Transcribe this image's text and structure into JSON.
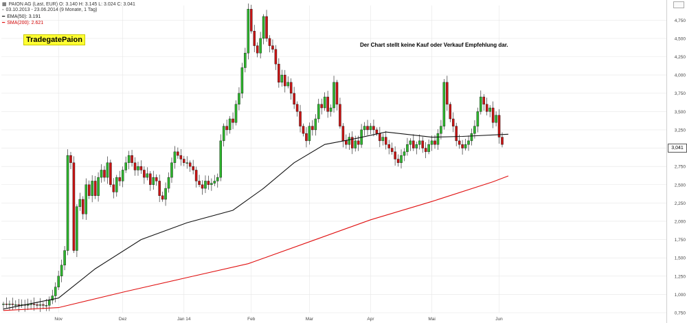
{
  "header": {
    "line1": "PAION AG (Last, EUR)  O: 3.140  H: 3.145  L: 3.024  C: 3.041",
    "line2": "03.10.2013 - 23.06.2014 (9 Monate, 1 Tag)",
    "ema_label": "EMA(50): 3.191",
    "sma_label": "SMA(200): 2.621",
    "tradegate_badge": "TradegatePaion",
    "disclaimer": "Der Chart stellt  keine Kauf  oder Verkauf Empfehlung dar."
  },
  "colors": {
    "up": "#2db52d",
    "down": "#c91414",
    "ema": "#111111",
    "sma": "#e01010",
    "grid": "#e6e6e6"
  },
  "chart_data": {
    "type": "candlestick",
    "title": "PAION AG (Last, EUR)",
    "ylim": [
      0.75,
      4.95
    ],
    "y_ticks": [
      0.75,
      1.0,
      1.25,
      1.5,
      1.75,
      2.0,
      2.25,
      2.5,
      2.75,
      3.0,
      3.25,
      3.5,
      3.75,
      4.0,
      4.25,
      4.5,
      4.75
    ],
    "y_tick_labels": [
      "0,750",
      "1,000",
      "1,250",
      "1,500",
      "1,750",
      "2,000",
      "2,250",
      "2,500",
      "2,750",
      "3,000",
      "3,250",
      "3,500",
      "3,750",
      "4,000",
      "4,250",
      "4,500",
      "4,750"
    ],
    "x_tick_labels": [
      "Nov",
      "Dez",
      "Jan 14",
      "Feb",
      "Mar",
      "Apr",
      "Mai",
      "Jun"
    ],
    "x_tick_index": [
      18,
      39,
      59,
      81,
      100,
      120,
      140,
      162
    ],
    "last_price_label": "3,041",
    "grid": true,
    "closes": [
      0.87,
      0.86,
      0.87,
      0.86,
      0.86,
      0.85,
      0.86,
      0.85,
      0.86,
      0.87,
      0.86,
      0.85,
      0.86,
      0.85,
      0.85,
      0.92,
      0.98,
      1.1,
      1.25,
      1.4,
      1.6,
      2.9,
      2.8,
      1.6,
      2.2,
      2.3,
      2.1,
      2.5,
      2.35,
      2.55,
      2.35,
      2.6,
      2.7,
      2.6,
      2.8,
      2.5,
      2.4,
      2.6,
      2.55,
      2.7,
      2.8,
      2.9,
      2.8,
      2.7,
      2.75,
      2.7,
      2.6,
      2.65,
      2.5,
      2.6,
      2.55,
      2.35,
      2.3,
      2.45,
      2.6,
      2.8,
      2.95,
      2.9,
      2.85,
      2.8,
      2.8,
      2.75,
      2.7,
      2.55,
      2.5,
      2.45,
      2.55,
      2.5,
      2.52,
      2.55,
      2.6,
      3.1,
      3.3,
      3.25,
      3.4,
      3.35,
      3.6,
      3.75,
      4.1,
      4.3,
      4.9,
      4.6,
      4.4,
      4.3,
      4.5,
      4.8,
      4.5,
      4.4,
      4.35,
      4.15,
      3.9,
      4.0,
      3.85,
      3.9,
      3.75,
      3.6,
      3.5,
      3.3,
      3.2,
      3.1,
      3.3,
      3.25,
      3.4,
      3.6,
      3.55,
      3.7,
      3.5,
      3.55,
      3.9,
      3.6,
      3.3,
      3.1,
      3.05,
      3.15,
      3.0,
      3.1,
      3.05,
      3.25,
      3.3,
      3.25,
      3.3,
      3.25,
      3.2,
      3.1,
      3.15,
      3.05,
      3.0,
      2.95,
      2.85,
      2.8,
      2.9,
      2.95,
      3.05,
      3.1,
      3.0,
      3.05,
      3.1,
      3.0,
      2.95,
      3.05,
      3.1,
      3.05,
      3.2,
      3.3,
      3.9,
      3.6,
      3.4,
      3.3,
      3.1,
      3.05,
      3.0,
      3.05,
      3.1,
      3.2,
      3.3,
      3.5,
      3.7,
      3.6,
      3.5,
      3.55,
      3.35,
      3.45,
      3.15,
      3.05
    ],
    "series": [
      {
        "name": "EMA(50)",
        "x": [
          0,
          18,
          30,
          45,
          60,
          75,
          85,
          95,
          105,
          115,
          125,
          140,
          150,
          165
        ],
        "y": [
          0.8,
          0.95,
          1.35,
          1.75,
          1.98,
          2.15,
          2.45,
          2.8,
          3.05,
          3.13,
          3.22,
          3.15,
          3.16,
          3.19
        ]
      },
      {
        "name": "SMA(200)",
        "x": [
          0,
          18,
          40,
          60,
          80,
          100,
          120,
          140,
          160,
          165
        ],
        "y": [
          0.78,
          0.82,
          1.04,
          1.23,
          1.42,
          1.72,
          2.02,
          2.27,
          2.54,
          2.62
        ]
      }
    ]
  }
}
